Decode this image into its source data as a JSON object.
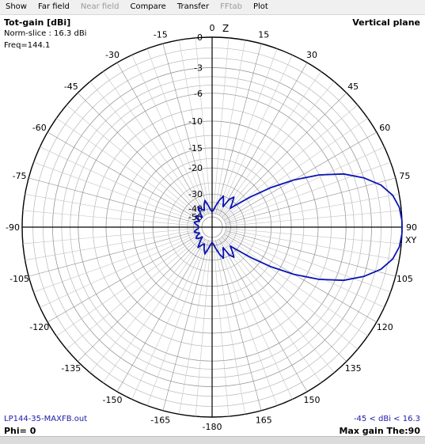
{
  "menu": {
    "items": [
      {
        "label": "Show",
        "enabled": true
      },
      {
        "label": "Far field",
        "enabled": true
      },
      {
        "label": "Near field",
        "enabled": false
      },
      {
        "label": "Compare",
        "enabled": true
      },
      {
        "label": "Transfer",
        "enabled": true
      },
      {
        "label": "FFtab",
        "enabled": false
      },
      {
        "label": "Plot",
        "enabled": true
      }
    ]
  },
  "header": {
    "title": "Tot-gain [dBi]",
    "norm": "Norm-slice : 16.3 dBi",
    "freq": "Freq=144.1",
    "plane": "Vertical plane"
  },
  "footer": {
    "filename": "LP144-35-MAXFB.out",
    "phi": "Phi= 0",
    "range": "-45 < dBi < 16.3",
    "max_gain": "Max gain The:90"
  },
  "axis_marks": {
    "z": "Z",
    "xy": "XY"
  },
  "chart_data": {
    "type": "polar",
    "angle_ticks": [
      {
        "deg": 0,
        "label": "0"
      },
      {
        "deg": 15,
        "label": "15"
      },
      {
        "deg": 30,
        "label": "30"
      },
      {
        "deg": 45,
        "label": "45"
      },
      {
        "deg": 60,
        "label": "60"
      },
      {
        "deg": 75,
        "label": "75"
      },
      {
        "deg": 90,
        "label": "90"
      },
      {
        "deg": 105,
        "label": "105"
      },
      {
        "deg": 120,
        "label": "120"
      },
      {
        "deg": 135,
        "label": "135"
      },
      {
        "deg": 150,
        "label": "150"
      },
      {
        "deg": 165,
        "label": "165"
      },
      {
        "deg": 180,
        "label": "-180"
      },
      {
        "deg": 195,
        "label": "-165"
      },
      {
        "deg": 210,
        "label": "-150"
      },
      {
        "deg": 225,
        "label": "-135"
      },
      {
        "deg": 240,
        "label": "-120"
      },
      {
        "deg": 255,
        "label": "-105"
      },
      {
        "deg": 270,
        "label": "-90"
      },
      {
        "deg": 285,
        "label": "-75"
      },
      {
        "deg": 300,
        "label": "-60"
      },
      {
        "deg": 315,
        "label": "-45"
      },
      {
        "deg": 330,
        "label": "-30"
      },
      {
        "deg": 345,
        "label": "-15"
      }
    ],
    "radial_ticks": [
      {
        "db": 0,
        "label": "0"
      },
      {
        "db": -3,
        "label": "-3"
      },
      {
        "db": -6,
        "label": "-6"
      },
      {
        "db": -10,
        "label": "-10"
      },
      {
        "db": -15,
        "label": "-15"
      },
      {
        "db": -20,
        "label": "-20"
      },
      {
        "db": -30,
        "label": "-30"
      },
      {
        "db": -40,
        "label": "-40"
      },
      {
        "db": -50,
        "label": "-50"
      }
    ],
    "series": [
      {
        "color": "#0a14b4",
        "points": [
          [
            0,
            -43
          ],
          [
            5,
            -41
          ],
          [
            10,
            -37
          ],
          [
            15,
            -33
          ],
          [
            20,
            -30
          ],
          [
            24,
            -33
          ],
          [
            28,
            -36
          ],
          [
            32,
            -30
          ],
          [
            36,
            -28
          ],
          [
            40,
            -31
          ],
          [
            44,
            -34
          ],
          [
            48,
            -29
          ],
          [
            52,
            -23
          ],
          [
            56,
            -17
          ],
          [
            60,
            -12
          ],
          [
            64,
            -8
          ],
          [
            68,
            -5
          ],
          [
            72,
            -3
          ],
          [
            76,
            -1.5
          ],
          [
            80,
            -0.6
          ],
          [
            84,
            -0.15
          ],
          [
            88,
            0
          ],
          [
            90,
            0
          ],
          [
            92,
            0
          ],
          [
            96,
            -0.15
          ],
          [
            100,
            -0.6
          ],
          [
            104,
            -1.5
          ],
          [
            108,
            -3
          ],
          [
            112,
            -5
          ],
          [
            116,
            -8
          ],
          [
            120,
            -12
          ],
          [
            124,
            -17
          ],
          [
            128,
            -23
          ],
          [
            132,
            -29
          ],
          [
            136,
            -34
          ],
          [
            140,
            -31
          ],
          [
            144,
            -28
          ],
          [
            148,
            -30
          ],
          [
            152,
            -36
          ],
          [
            156,
            -33
          ],
          [
            160,
            -30
          ],
          [
            165,
            -33
          ],
          [
            170,
            -37
          ],
          [
            175,
            -41
          ],
          [
            180,
            -43
          ],
          [
            185,
            -41
          ],
          [
            190,
            -37
          ],
          [
            195,
            -33
          ],
          [
            200,
            -36
          ],
          [
            205,
            -40
          ],
          [
            210,
            -38
          ],
          [
            215,
            -35
          ],
          [
            220,
            -40
          ],
          [
            225,
            -45
          ],
          [
            230,
            -41
          ],
          [
            235,
            -39
          ],
          [
            240,
            -41
          ],
          [
            245,
            -45
          ],
          [
            250,
            -42
          ],
          [
            255,
            -40
          ],
          [
            260,
            -42
          ],
          [
            265,
            -45
          ],
          [
            270,
            -45
          ],
          [
            275,
            -45
          ],
          [
            280,
            -42
          ],
          [
            285,
            -40
          ],
          [
            290,
            -42
          ],
          [
            295,
            -45
          ],
          [
            300,
            -41
          ],
          [
            305,
            -39
          ],
          [
            310,
            -41
          ],
          [
            315,
            -45
          ],
          [
            320,
            -40
          ],
          [
            325,
            -35
          ],
          [
            330,
            -38
          ],
          [
            335,
            -40
          ],
          [
            340,
            -36
          ],
          [
            345,
            -33
          ],
          [
            350,
            -37
          ],
          [
            355,
            -41
          ]
        ]
      }
    ]
  }
}
